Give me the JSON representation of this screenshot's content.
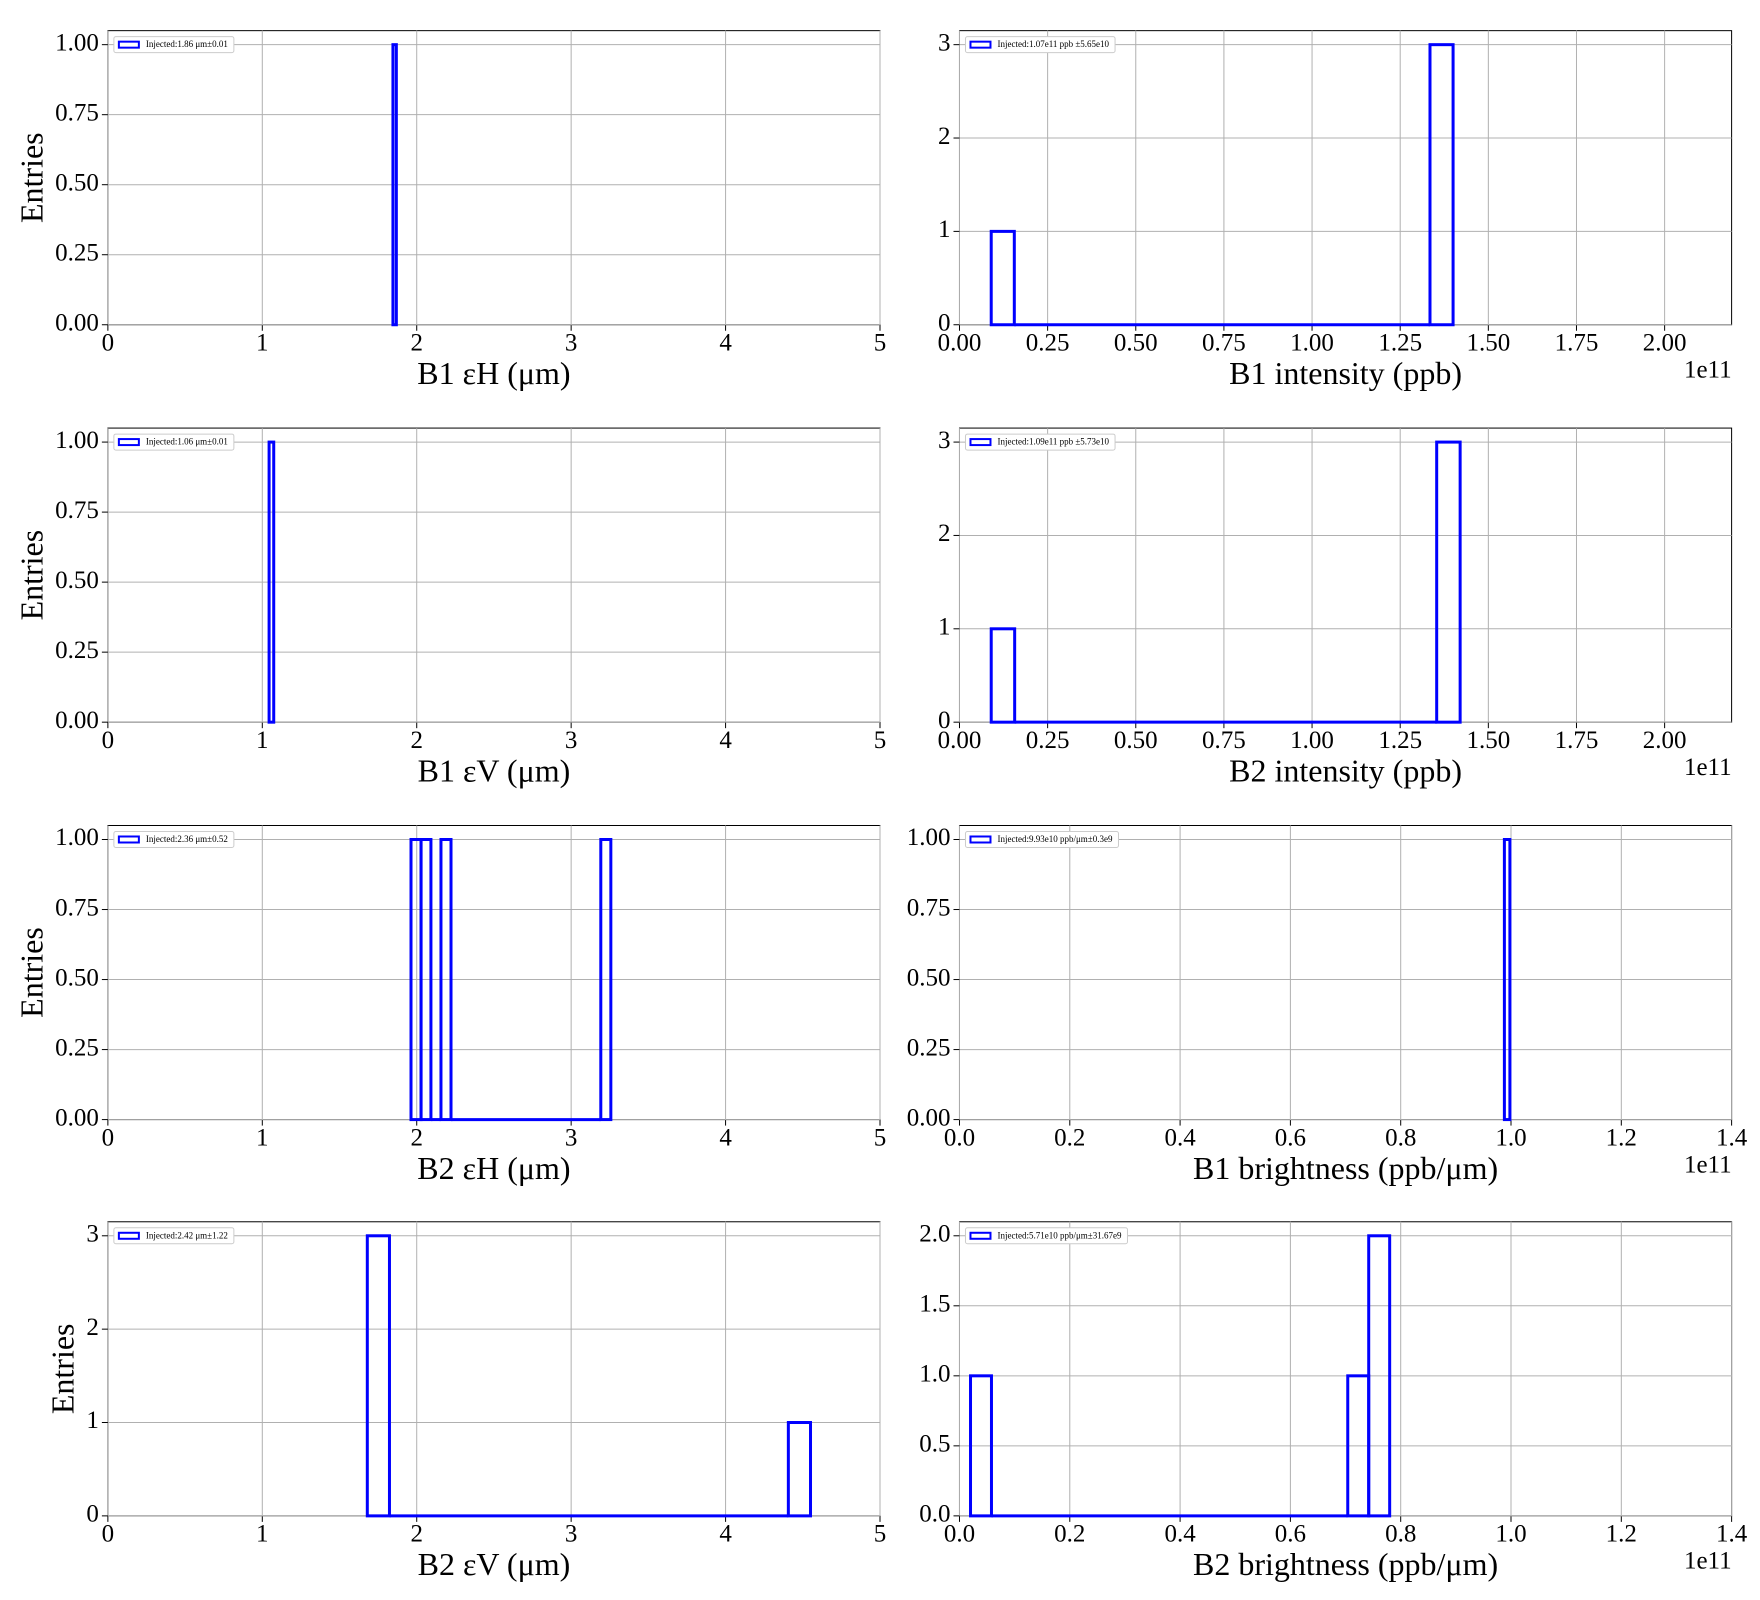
{
  "chart_data": [
    {
      "type": "histogram",
      "xlabel": "B1 εH (μm)",
      "ylabel": "Entries",
      "bins": [
        1.846,
        1.868
      ],
      "series": [
        {
          "name": "Injected:1.86 μm±0.01",
          "color": "#0000ff",
          "counts": [
            1
          ]
        }
      ],
      "xlim": [
        0,
        5
      ],
      "ylim": [
        0,
        1.05
      ],
      "xticks": [
        0,
        1,
        2,
        3,
        4,
        5
      ],
      "yticks": [
        {
          "value": 0,
          "label": "0.00"
        },
        0.25,
        {
          "value": 0.5,
          "label": "0.50"
        },
        0.75,
        {
          "value": 1,
          "label": "1.00"
        }
      ],
      "grid": true,
      "legend_loc": "upper left"
    },
    {
      "type": "histogram",
      "xlabel": "B1 intensity (ppb)",
      "x_offset_label": "1e11",
      "bins": [
        0.09,
        0.1555,
        1.3345,
        1.4
      ],
      "series": [
        {
          "name": "Injected:1.07e11 ppb ±5.65e10",
          "color": "#0000ff",
          "counts": [
            1,
            0,
            3
          ]
        }
      ],
      "xlim": [
        0,
        2.19
      ],
      "ylim": [
        0,
        3.15
      ],
      "xticks": [
        {
          "value": 0,
          "label": "0.00"
        },
        0.25,
        {
          "value": 0.5,
          "label": "0.50"
        },
        0.75,
        {
          "value": 1,
          "label": "1.00"
        },
        1.25,
        {
          "value": 1.5,
          "label": "1.50"
        },
        1.75,
        {
          "value": 2,
          "label": "2.00"
        }
      ],
      "yticks": [
        0,
        1,
        2,
        3
      ],
      "grid": true,
      "legend_loc": "upper left"
    },
    {
      "type": "histogram",
      "xlabel": "B1 εV (μm)",
      "ylabel": "Entries",
      "bins": [
        1.044,
        1.074
      ],
      "series": [
        {
          "name": "Injected:1.06 μm±0.01",
          "color": "#0000ff",
          "counts": [
            1
          ]
        }
      ],
      "xlim": [
        0,
        5
      ],
      "ylim": [
        0,
        1.05
      ],
      "xticks": [
        0,
        1,
        2,
        3,
        4,
        5
      ],
      "yticks": [
        {
          "value": 0,
          "label": "0.00"
        },
        0.25,
        {
          "value": 0.5,
          "label": "0.50"
        },
        0.75,
        {
          "value": 1,
          "label": "1.00"
        }
      ],
      "grid": true,
      "legend_loc": "upper left"
    },
    {
      "type": "histogram",
      "xlabel": "B2 intensity (ppb)",
      "x_offset_label": "1e11",
      "bins": [
        0.09,
        0.1565,
        1.3535,
        1.42
      ],
      "series": [
        {
          "name": "Injected:1.09e11 ppb ±5.73e10",
          "color": "#0000ff",
          "counts": [
            1,
            0,
            3
          ]
        }
      ],
      "xlim": [
        0,
        2.19
      ],
      "ylim": [
        0,
        3.15
      ],
      "xticks": [
        {
          "value": 0,
          "label": "0.00"
        },
        0.25,
        {
          "value": 0.5,
          "label": "0.50"
        },
        0.75,
        {
          "value": 1,
          "label": "1.00"
        },
        1.25,
        {
          "value": 1.5,
          "label": "1.50"
        },
        1.75,
        {
          "value": 2,
          "label": "2.00"
        }
      ],
      "yticks": [
        0,
        1,
        2,
        3
      ],
      "grid": true,
      "legend_loc": "upper left"
    },
    {
      "type": "histogram",
      "xlabel": "B2 εH (μm)",
      "ylabel": "Entries",
      "bins": [
        1.963,
        2.028,
        2.092,
        2.157,
        2.222,
        3.192,
        3.257
      ],
      "series": [
        {
          "name": "Injected:2.36 μm±0.52",
          "color": "#0000ff",
          "counts": [
            1,
            1,
            0,
            1,
            0,
            1
          ]
        }
      ],
      "xlim": [
        0,
        5
      ],
      "ylim": [
        0,
        1.05
      ],
      "xticks": [
        0,
        1,
        2,
        3,
        4,
        5
      ],
      "yticks": [
        {
          "value": 0,
          "label": "0.00"
        },
        0.25,
        {
          "value": 0.5,
          "label": "0.50"
        },
        0.75,
        {
          "value": 1,
          "label": "1.00"
        }
      ],
      "grid": true,
      "legend_loc": "upper left"
    },
    {
      "type": "histogram",
      "xlabel": "B1 brightness (ppb/μm)",
      "x_offset_label": "1e11",
      "bins": [
        0.988,
        0.998
      ],
      "series": [
        {
          "name": "Injected:9.93e10 ppb/μm±0.3e9",
          "color": "#0000ff",
          "counts": [
            1
          ]
        }
      ],
      "xlim": [
        0,
        1.4
      ],
      "ylim": [
        0,
        1.05
      ],
      "xticks": [
        {
          "value": 0,
          "label": "0.0"
        },
        0.2,
        0.4,
        0.6,
        0.8,
        {
          "value": 1,
          "label": "1.0"
        },
        1.2,
        1.4
      ],
      "yticks": [
        {
          "value": 0,
          "label": "0.00"
        },
        0.25,
        {
          "value": 0.5,
          "label": "0.50"
        },
        0.75,
        {
          "value": 1,
          "label": "1.00"
        }
      ],
      "grid": true,
      "legend_loc": "upper left"
    },
    {
      "type": "histogram",
      "xlabel": "B2 εV (μm)",
      "ylabel": "Entries",
      "bins": [
        1.68,
        1.8235,
        4.4065,
        4.55
      ],
      "series": [
        {
          "name": "Injected:2.42 μm±1.22",
          "color": "#0000ff",
          "counts": [
            3,
            0,
            1
          ]
        }
      ],
      "xlim": [
        0,
        5
      ],
      "ylim": [
        0,
        3.15
      ],
      "xticks": [
        0,
        1,
        2,
        3,
        4,
        5
      ],
      "yticks": [
        0,
        1,
        2,
        3
      ],
      "grid": true,
      "legend_loc": "upper left"
    },
    {
      "type": "histogram",
      "xlabel": "B2 brightness (ppb/μm)",
      "x_offset_label": "1e11",
      "bins": [
        0.02,
        0.058,
        0.704,
        0.742,
        0.78
      ],
      "series": [
        {
          "name": "Injected:5.71e10 ppb/μm±31.67e9",
          "color": "#0000ff",
          "counts": [
            1,
            0,
            1,
            2
          ]
        }
      ],
      "xlim": [
        0,
        1.4
      ],
      "ylim": [
        0,
        2.1
      ],
      "xticks": [
        {
          "value": 0,
          "label": "0.0"
        },
        0.2,
        0.4,
        0.6,
        0.8,
        {
          "value": 1,
          "label": "1.0"
        },
        1.2,
        1.4
      ],
      "yticks": [
        {
          "value": 0,
          "label": "0.0"
        },
        0.5,
        {
          "value": 1,
          "label": "1.0"
        },
        1.5,
        {
          "value": 2,
          "label": "2.0"
        }
      ],
      "grid": true,
      "legend_loc": "upper left"
    }
  ]
}
